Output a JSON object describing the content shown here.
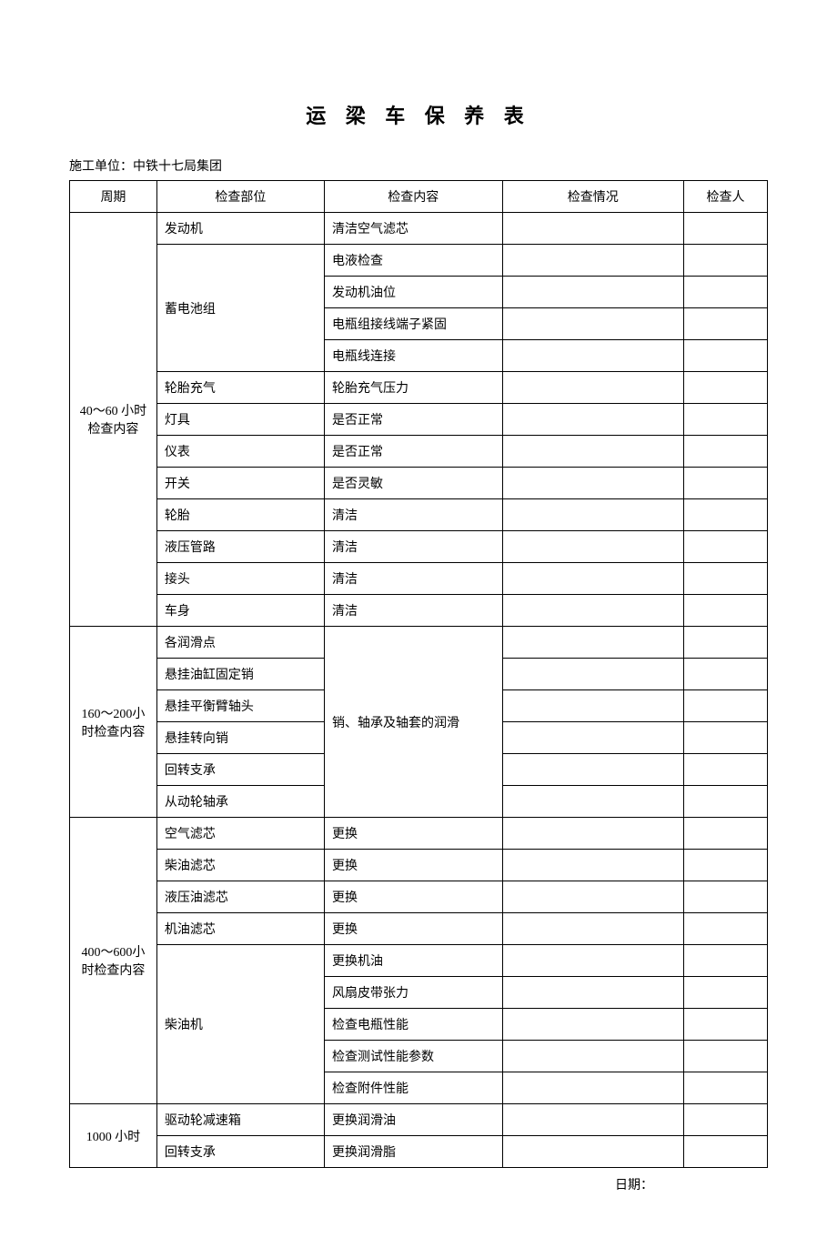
{
  "title": "运 梁 车 保 养 表",
  "org_label": "施工单位：",
  "org_value": "中铁十七局集团",
  "headers": {
    "period": "周期",
    "part": "检查部位",
    "content": "检查内容",
    "status": "检查情况",
    "person": "检查人"
  },
  "sections": [
    {
      "period": "40～60 小时检查内容",
      "groups": [
        {
          "part": "发动机",
          "items": [
            "清洁空气滤芯"
          ]
        },
        {
          "part": "蓄电池组",
          "items": [
            "电液检查",
            "发动机油位",
            "电瓶组接线端子紧固",
            "电瓶线连接"
          ]
        },
        {
          "part": "轮胎充气",
          "items": [
            "轮胎充气压力"
          ]
        },
        {
          "part": "灯具",
          "items": [
            "是否正常"
          ]
        },
        {
          "part": "仪表",
          "items": [
            "是否正常"
          ]
        },
        {
          "part": "开关",
          "items": [
            "是否灵敏"
          ]
        },
        {
          "part": "轮胎",
          "items": [
            "清洁"
          ]
        },
        {
          "part": "液压管路",
          "items": [
            "清洁"
          ]
        },
        {
          "part": "接头",
          "items": [
            "清洁"
          ]
        },
        {
          "part": "车身",
          "items": [
            "清洁"
          ]
        }
      ]
    },
    {
      "period": "160～200小时检查内容",
      "merged_content": "销、轴承及轴套的润滑",
      "groups": [
        {
          "part": "各润滑点"
        },
        {
          "part": "悬挂油缸固定销"
        },
        {
          "part": "悬挂平衡臂轴头"
        },
        {
          "part": "悬挂转向销"
        },
        {
          "part": "回转支承"
        },
        {
          "part": "从动轮轴承"
        }
      ]
    },
    {
      "period": "400～600小时检查内容",
      "groups": [
        {
          "part": "空气滤芯",
          "items": [
            "更换"
          ]
        },
        {
          "part": "柴油滤芯",
          "items": [
            "更换"
          ]
        },
        {
          "part": "液压油滤芯",
          "items": [
            "更换"
          ]
        },
        {
          "part": "机油滤芯",
          "items": [
            "更换"
          ]
        },
        {
          "part": "柴油机",
          "items": [
            "更换机油",
            "风扇皮带张力",
            "检查电瓶性能",
            "检查测试性能参数",
            "检查附件性能"
          ]
        }
      ]
    },
    {
      "period": "1000 小时",
      "groups": [
        {
          "part": "驱动轮减速箱",
          "items": [
            "更换润滑油"
          ]
        },
        {
          "part": "回转支承",
          "items": [
            "更换润滑脂"
          ]
        }
      ]
    }
  ],
  "footer_label": "日期："
}
